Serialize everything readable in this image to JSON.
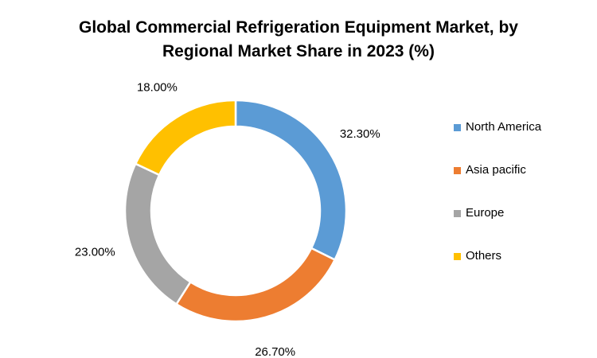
{
  "chart_data": {
    "type": "pie",
    "style": "donut",
    "title_lines": [
      "Global Commercial Refrigeration Equipment Market, by",
      "Regional Market Share in 2023 (%)"
    ],
    "legend_position": "right",
    "slices": [
      {
        "name": "North America",
        "value": 32.3,
        "label": "32.30%",
        "color": "#5B9BD5"
      },
      {
        "name": "Asia pacific",
        "value": 26.7,
        "label": "26.70%",
        "color": "#ED7D31"
      },
      {
        "name": "Europe",
        "value": 23.0,
        "label": "23.00%",
        "color": "#A5A5A5"
      },
      {
        "name": "Others",
        "value": 18.0,
        "label": "18.00%",
        "color": "#FFC000"
      }
    ]
  }
}
